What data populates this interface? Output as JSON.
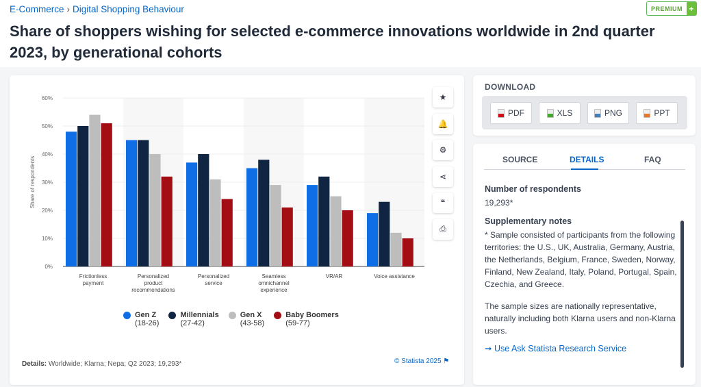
{
  "breadcrumb": [
    "E-Commerce",
    "Digital Shopping Behaviour"
  ],
  "premium": {
    "label": "PREMIUM",
    "plus": "+"
  },
  "title": "Share of shoppers wishing for selected e-commerce innovations worldwide in 2nd quarter 2023, by generational cohorts",
  "tools": [
    "star-icon",
    "bell-icon",
    "gear-icon",
    "share-icon",
    "quote-icon",
    "print-icon"
  ],
  "tool_glyphs": [
    "★",
    "🔔",
    "⚙",
    "⋖",
    "❝",
    "⎙"
  ],
  "chart_data": {
    "type": "bar",
    "title": "",
    "xlabel": "",
    "ylabel": "Share of respondents",
    "ylim": [
      0,
      60
    ],
    "yticks": [
      "0%",
      "10%",
      "20%",
      "30%",
      "40%",
      "50%",
      "60%"
    ],
    "categories": [
      [
        "Frictionless",
        "payment"
      ],
      [
        "Personalized",
        "product",
        "recommendations"
      ],
      [
        "Personalized",
        "service"
      ],
      [
        "Seamless",
        "omnichannel",
        "experience"
      ],
      [
        "VR/AR"
      ],
      [
        "Voice assistance"
      ]
    ],
    "series": [
      {
        "name": "Gen Z",
        "sub": "(18-26)",
        "color": "#0f6ee6",
        "values": [
          48,
          45,
          37,
          35,
          29,
          19
        ]
      },
      {
        "name": "Millennials",
        "sub": "(27-42)",
        "color": "#0f2542",
        "values": [
          50,
          45,
          40,
          38,
          32,
          23
        ]
      },
      {
        "name": "Gen X",
        "sub": "(43-58)",
        "color": "#bdbdbd",
        "values": [
          54,
          40,
          31,
          29,
          25,
          12
        ]
      },
      {
        "name": "Baby Boomers",
        "sub": "(59-77)",
        "color": "#a30d14",
        "values": [
          51,
          32,
          24,
          21,
          20,
          10
        ]
      }
    ],
    "legend": "bottom",
    "grid": true
  },
  "footer": {
    "details_label": "Details:",
    "details": " Worldwide; Klarna; Nepa; Q2 2023; 19,293*",
    "copyright": "© Statista 2025 ⚑"
  },
  "download": {
    "title": "DOWNLOAD",
    "buttons": [
      {
        "label": "PDF",
        "color": "#d0111b"
      },
      {
        "label": "XLS",
        "color": "#46a832"
      },
      {
        "label": "PNG",
        "color": "#4a7fb5"
      },
      {
        "label": "PPT",
        "color": "#e8772e"
      }
    ]
  },
  "tabs": [
    "SOURCE",
    "DETAILS",
    "FAQ"
  ],
  "respondents": {
    "title": "Number of respondents",
    "value": "19,293*"
  },
  "notes": {
    "title": "Supplementary notes",
    "p1": "* Sample consisted of participants from the following territories: the U.S., UK, Australia, Germany, Austria, the Netherlands, Belgium, France, Sweden, Norway, Finland, New Zealand, Italy, Poland, Portugal, Spain, Czechia, and Greece.",
    "p2": "The sample sizes are nationally representative, naturally including both Klarna users and non-Klarna users."
  },
  "link": "➞ Use Ask Statista Research Service"
}
